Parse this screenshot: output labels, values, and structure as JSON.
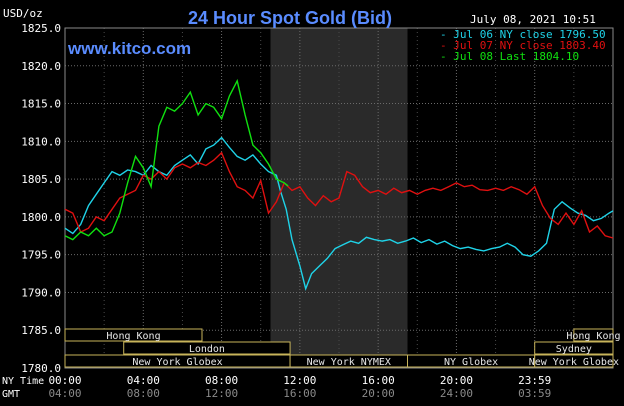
{
  "header": {
    "title": "24 Hour Spot Gold (Bid)",
    "unit": "USD/oz",
    "date": "July 08, 2021 10:51",
    "site": "www.kitco.com"
  },
  "legend": [
    {
      "label": "Jul 06 NY close 1796.50",
      "color": "#1fd3e8"
    },
    {
      "label": "Jul 07 NY close 1803.40",
      "color": "#e01010"
    },
    {
      "label": "Jul 08 Last 1804.10",
      "color": "#10e010"
    }
  ],
  "footer": {
    "ny_time_label": "NY Time",
    "gmt_label": "GMT"
  },
  "sessions": [
    {
      "label": "Hong Kong",
      "row": 0,
      "start": 0,
      "end": 7
    },
    {
      "label": "London",
      "row": 1,
      "start": 3,
      "end": 11.5
    },
    {
      "label": "New York Globex",
      "row": 2,
      "start": 0,
      "end": 11.5
    },
    {
      "label": "New York NYMEX",
      "row": 2,
      "start": 11.5,
      "end": 17.5
    },
    {
      "label": "NY Globex",
      "row": 2,
      "start": 17.5,
      "end": 24
    },
    {
      "label": "Hong Kong",
      "row": 0,
      "start": 26,
      "end": 28
    },
    {
      "label": "Sydney",
      "row": 1,
      "start": 24,
      "end": 28
    },
    {
      "label": "New York Globex",
      "row": 2,
      "start": 24,
      "end": 28
    }
  ],
  "chart_data": {
    "type": "line",
    "title": "24 Hour Spot Gold (Bid)",
    "ylabel": "USD/oz",
    "ylim": [
      1780,
      1825
    ],
    "yticks": [
      "1825.0",
      "1820.0",
      "1815.0",
      "1810.0",
      "1805.0",
      "1800.0",
      "1795.0",
      "1790.0",
      "1785.0",
      "1780.0"
    ],
    "x_range_hours": [
      0,
      28
    ],
    "xticks_ny": [
      "00:00",
      "04:00",
      "08:00",
      "12:00",
      "16:00",
      "20:00",
      "23:59"
    ],
    "xticks_gmt": [
      "04:00",
      "08:00",
      "12:00",
      "16:00",
      "20:00",
      "24:00",
      "03:59"
    ],
    "shaded_range_hours": [
      10.5,
      17.5
    ],
    "series": [
      {
        "name": "Jul 06 NY close 1796.50",
        "color": "#1fd3e8",
        "x": [
          0,
          0.4,
          0.8,
          1.2,
          1.6,
          2.0,
          2.4,
          2.8,
          3.2,
          3.6,
          4.0,
          4.4,
          4.8,
          5.2,
          5.6,
          6.0,
          6.4,
          6.8,
          7.2,
          7.6,
          8.0,
          8.4,
          8.8,
          9.2,
          9.6,
          10.0,
          10.4,
          10.8,
          11.0,
          11.3,
          11.6,
          12.0,
          12.3,
          12.6,
          13.0,
          13.4,
          13.8,
          14.2,
          14.6,
          15.0,
          15.4,
          15.8,
          16.2,
          16.6,
          17.0,
          17.4,
          17.8,
          18.2,
          18.6,
          19.0,
          19.4,
          19.8,
          20.2,
          20.6,
          21.0,
          21.4,
          21.8,
          22.2,
          22.6,
          23.0,
          23.4,
          23.8,
          24.2,
          24.6,
          25.0,
          25.4,
          25.8,
          26.2,
          26.6,
          27.0,
          27.4,
          27.8,
          28.0
        ],
        "y": [
          1798.5,
          1797.8,
          1799.0,
          1801.5,
          1803.0,
          1804.5,
          1806.0,
          1805.5,
          1806.2,
          1806.0,
          1805.5,
          1806.8,
          1806.0,
          1805.5,
          1806.8,
          1807.5,
          1808.2,
          1807.0,
          1809.0,
          1809.5,
          1810.5,
          1809.2,
          1808.0,
          1807.5,
          1808.2,
          1807.0,
          1806.0,
          1805.5,
          1803.5,
          1801.0,
          1797.0,
          1793.5,
          1790.5,
          1792.5,
          1793.5,
          1794.5,
          1795.8,
          1796.3,
          1796.8,
          1796.5,
          1797.3,
          1797.0,
          1796.8,
          1797.0,
          1796.5,
          1796.8,
          1797.2,
          1796.6,
          1797.0,
          1796.4,
          1796.8,
          1796.2,
          1795.8,
          1796.0,
          1795.7,
          1795.5,
          1795.8,
          1796.0,
          1796.5,
          1796.0,
          1795.0,
          1794.8,
          1795.5,
          1796.5,
          1801.0,
          1802.0,
          1801.2,
          1800.5,
          1800.2,
          1799.5,
          1799.8,
          1800.5,
          1800.8
        ]
      },
      {
        "name": "Jul 07 NY close 1803.40",
        "color": "#e01010",
        "x": [
          0,
          0.4,
          0.8,
          1.2,
          1.6,
          2.0,
          2.4,
          2.8,
          3.2,
          3.6,
          4.0,
          4.4,
          4.8,
          5.2,
          5.6,
          6.0,
          6.4,
          6.8,
          7.2,
          7.6,
          8.0,
          8.4,
          8.8,
          9.2,
          9.6,
          10.0,
          10.4,
          10.8,
          11.2,
          11.6,
          12.0,
          12.4,
          12.8,
          13.2,
          13.6,
          14.0,
          14.4,
          14.8,
          15.2,
          15.6,
          16.0,
          16.4,
          16.8,
          17.2,
          17.6,
          18.0,
          18.4,
          18.8,
          19.2,
          19.6,
          20.0,
          20.4,
          20.8,
          21.2,
          21.6,
          22.0,
          22.4,
          22.8,
          23.2,
          23.6,
          24.0,
          24.4,
          24.8,
          25.2,
          25.6,
          26.0,
          26.4,
          26.8,
          27.2,
          27.6,
          28.0
        ],
        "y": [
          1801.0,
          1800.5,
          1798.0,
          1798.5,
          1800.0,
          1799.5,
          1801.0,
          1802.5,
          1803.0,
          1803.5,
          1805.5,
          1805.0,
          1806.0,
          1805.0,
          1806.5,
          1807.0,
          1806.5,
          1807.2,
          1806.8,
          1807.5,
          1808.5,
          1806.0,
          1804.0,
          1803.5,
          1802.5,
          1804.8,
          1800.5,
          1802.0,
          1804.5,
          1803.5,
          1804.0,
          1802.5,
          1801.5,
          1802.8,
          1802.0,
          1802.5,
          1806.0,
          1805.5,
          1804.0,
          1803.2,
          1803.5,
          1803.0,
          1803.8,
          1803.2,
          1803.5,
          1803.0,
          1803.5,
          1803.8,
          1803.5,
          1804.0,
          1804.5,
          1804.0,
          1804.2,
          1803.6,
          1803.5,
          1803.8,
          1803.5,
          1804.0,
          1803.6,
          1803.0,
          1804.0,
          1801.5,
          1799.8,
          1799.0,
          1800.5,
          1799.0,
          1800.8,
          1798.0,
          1798.8,
          1797.5,
          1797.2
        ]
      },
      {
        "name": "Jul 08 Last 1804.10",
        "color": "#10e010",
        "x": [
          0,
          0.4,
          0.8,
          1.2,
          1.6,
          2.0,
          2.4,
          2.8,
          3.2,
          3.6,
          4.0,
          4.4,
          4.8,
          5.2,
          5.6,
          6.0,
          6.4,
          6.8,
          7.2,
          7.6,
          8.0,
          8.4,
          8.8,
          9.2,
          9.6,
          10.0,
          10.4,
          10.8,
          11.2,
          11.4
        ],
        "y": [
          1797.5,
          1797.0,
          1798.0,
          1797.5,
          1798.5,
          1797.5,
          1798.0,
          1800.5,
          1804.5,
          1808.0,
          1806.5,
          1804.0,
          1812.0,
          1814.5,
          1814.0,
          1815.0,
          1816.5,
          1813.5,
          1815.0,
          1814.5,
          1813.0,
          1816.0,
          1818.0,
          1813.5,
          1809.5,
          1808.5,
          1807.0,
          1805.0,
          1804.5,
          1804.1
        ]
      }
    ]
  }
}
